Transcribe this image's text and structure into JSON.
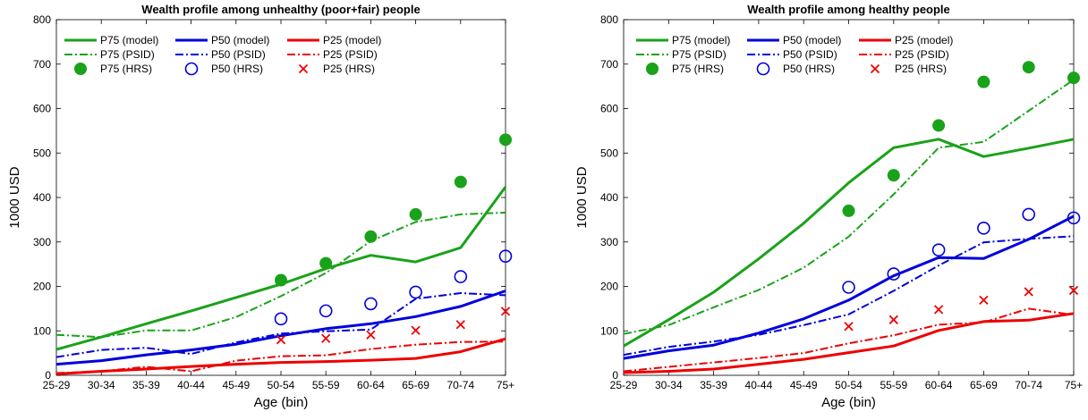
{
  "chart_data": [
    {
      "type": "line",
      "title": "Wealth profile among unhealthy (poor+fair) people",
      "xlabel": "Age (bin)",
      "ylabel": "1000 USD",
      "ylim": [
        0,
        800
      ],
      "yticks": [
        0,
        100,
        200,
        300,
        400,
        500,
        600,
        700,
        800
      ],
      "categories": [
        "25-29",
        "30-34",
        "35-39",
        "40-44",
        "45-49",
        "50-54",
        "55-59",
        "60-64",
        "65-69",
        "70-74",
        "75+"
      ],
      "legend_position": "top-left",
      "grid": false,
      "series": [
        {
          "name": "P75 (model)",
          "color": "#1aa21a",
          "style": "solid",
          "marker": "none",
          "values": [
            58,
            86,
            116,
            145,
            175,
            205,
            240,
            270,
            255,
            287,
            424
          ]
        },
        {
          "name": "P50 (model)",
          "color": "#0000dd",
          "style": "solid",
          "marker": "none",
          "values": [
            25,
            33,
            46,
            57,
            70,
            89,
            105,
            116,
            132,
            155,
            190
          ]
        },
        {
          "name": "P25 (model)",
          "color": "#ee0000",
          "style": "solid",
          "marker": "none",
          "values": [
            3,
            9,
            14,
            20,
            25,
            29,
            31,
            34,
            38,
            53,
            82
          ]
        },
        {
          "name": "P75 (PSID)",
          "color": "#1aa21a",
          "style": "dashdot",
          "marker": "none",
          "values": [
            91,
            86,
            101,
            101,
            131,
            178,
            230,
            302,
            345,
            362,
            366
          ]
        },
        {
          "name": "P50 (PSID)",
          "color": "#0000dd",
          "style": "dashdot",
          "marker": "none",
          "values": [
            41,
            57,
            62,
            48,
            74,
            94,
            99,
            103,
            172,
            185,
            180
          ]
        },
        {
          "name": "P25 (PSID)",
          "color": "#ee0000",
          "style": "dashdot",
          "marker": "none",
          "values": [
            5,
            9,
            19,
            9,
            33,
            43,
            45,
            59,
            69,
            75,
            76
          ]
        },
        {
          "name": "P75 (HRS)",
          "color": "#1aa21a",
          "style": "none",
          "marker": "filled-circle",
          "values": [
            null,
            null,
            null,
            null,
            null,
            214,
            252,
            312,
            362,
            435,
            530
          ]
        },
        {
          "name": "P50 (HRS)",
          "color": "#0000dd",
          "style": "none",
          "marker": "open-circle",
          "values": [
            null,
            null,
            null,
            null,
            null,
            127,
            145,
            161,
            187,
            222,
            268
          ]
        },
        {
          "name": "P25 (HRS)",
          "color": "#ee0000",
          "style": "none",
          "marker": "x",
          "values": [
            null,
            null,
            null,
            null,
            null,
            80,
            83,
            91,
            101,
            114,
            144
          ]
        }
      ]
    },
    {
      "type": "line",
      "title": "Wealth profile among healthy people",
      "xlabel": "Age (bin)",
      "ylabel": "1000 USD",
      "ylim": [
        0,
        800
      ],
      "yticks": [
        0,
        100,
        200,
        300,
        400,
        500,
        600,
        700,
        800
      ],
      "categories": [
        "25-29",
        "30-34",
        "35-39",
        "40-44",
        "45-49",
        "50-54",
        "55-59",
        "60-64",
        "65-69",
        "70-74",
        "75+"
      ],
      "legend_position": "top-left",
      "grid": false,
      "series": [
        {
          "name": "P75 (model)",
          "color": "#1aa21a",
          "style": "solid",
          "marker": "none",
          "values": [
            66,
            125,
            187,
            262,
            342,
            433,
            512,
            531,
            492,
            511,
            531
          ]
        },
        {
          "name": "P50 (model)",
          "color": "#0000dd",
          "style": "solid",
          "marker": "none",
          "values": [
            38,
            55,
            68,
            95,
            127,
            169,
            224,
            265,
            263,
            306,
            358
          ]
        },
        {
          "name": "P25 (model)",
          "color": "#ee0000",
          "style": "solid",
          "marker": "none",
          "values": [
            6,
            9,
            14,
            25,
            36,
            51,
            66,
            101,
            121,
            124,
            139
          ]
        },
        {
          "name": "P75 (PSID)",
          "color": "#1aa21a",
          "style": "dashdot",
          "marker": "none",
          "values": [
            93,
            113,
            153,
            192,
            242,
            312,
            407,
            512,
            525,
            595,
            665
          ]
        },
        {
          "name": "P50 (PSID)",
          "color": "#0000dd",
          "style": "dashdot",
          "marker": "none",
          "values": [
            46,
            64,
            76,
            91,
            113,
            137,
            190,
            247,
            299,
            307,
            313
          ]
        },
        {
          "name": "P25 (PSID)",
          "color": "#ee0000",
          "style": "dashdot",
          "marker": "none",
          "values": [
            9,
            19,
            29,
            39,
            50,
            72,
            90,
            114,
            119,
            150,
            136
          ]
        },
        {
          "name": "P75 (HRS)",
          "color": "#1aa21a",
          "style": "none",
          "marker": "filled-circle",
          "values": [
            null,
            null,
            null,
            null,
            null,
            370,
            450,
            562,
            660,
            693,
            669
          ]
        },
        {
          "name": "P50 (HRS)",
          "color": "#0000dd",
          "style": "none",
          "marker": "open-circle",
          "values": [
            null,
            null,
            null,
            null,
            null,
            198,
            228,
            282,
            331,
            362,
            354
          ]
        },
        {
          "name": "P25 (HRS)",
          "color": "#ee0000",
          "style": "none",
          "marker": "x",
          "values": [
            null,
            null,
            null,
            null,
            null,
            110,
            125,
            148,
            169,
            188,
            191
          ]
        }
      ]
    }
  ]
}
